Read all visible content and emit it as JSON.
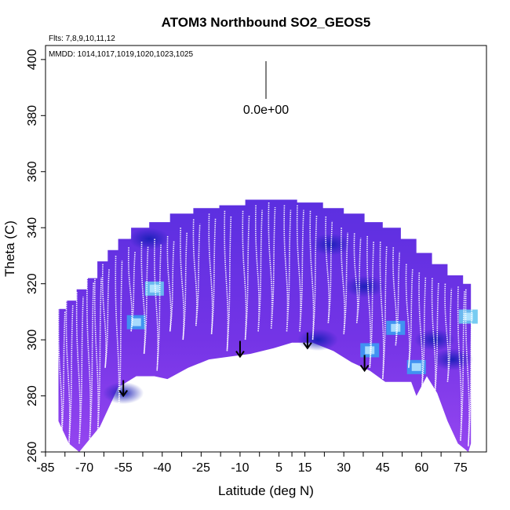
{
  "chart_data": {
    "type": "heatmap",
    "title": "ATOM3 Northbound SO2_GEOS5",
    "xlabel": "Latitude (deg N)",
    "ylabel": "Theta (C)",
    "xlim": [
      -85,
      85
    ],
    "ylim": [
      260,
      405
    ],
    "xticks": [
      -85,
      -70,
      -55,
      -40,
      -25,
      -10,
      5,
      15,
      30,
      45,
      60,
      75
    ],
    "xtick_labels": [
      "-85",
      "-70",
      "-55",
      "-40",
      "-25",
      "-10",
      "5",
      "15",
      "30",
      "45",
      "60",
      "75"
    ],
    "yticks": [
      260,
      280,
      300,
      320,
      340,
      360,
      380,
      400
    ],
    "ytick_labels": [
      "260",
      "280",
      "300",
      "320",
      "340",
      "360",
      "380",
      "400"
    ],
    "flights_label": "Flts: 7,8,9,10,11,12",
    "mmdd_label": "MMDD: 1014,1017,1019,1020,1023,1025",
    "scale_label": "0.0e+00",
    "curtain_top": [
      [
        -80,
        311
      ],
      [
        -77,
        314
      ],
      [
        -73,
        318
      ],
      [
        -69,
        322
      ],
      [
        -65,
        328
      ],
      [
        -61,
        332
      ],
      [
        -57,
        336
      ],
      [
        -52,
        340
      ],
      [
        -45,
        342
      ],
      [
        -37,
        345
      ],
      [
        -28,
        347
      ],
      [
        -18,
        348
      ],
      [
        -8,
        350
      ],
      [
        2,
        350
      ],
      [
        12,
        349
      ],
      [
        22,
        347
      ],
      [
        30,
        345
      ],
      [
        38,
        342
      ],
      [
        45,
        340
      ],
      [
        52,
        336
      ],
      [
        58,
        331
      ],
      [
        64,
        327
      ],
      [
        70,
        323
      ],
      [
        76,
        320
      ],
      [
        79,
        319
      ]
    ],
    "curtain_bottom": [
      [
        -80,
        271
      ],
      [
        -76,
        263
      ],
      [
        -72,
        260
      ],
      [
        -64,
        269
      ],
      [
        -57,
        283
      ],
      [
        -50,
        287
      ],
      [
        -43,
        287
      ],
      [
        -38,
        286
      ],
      [
        -30,
        290
      ],
      [
        -22,
        293
      ],
      [
        -14,
        294
      ],
      [
        -6,
        295
      ],
      [
        3,
        297
      ],
      [
        10,
        299
      ],
      [
        18,
        299
      ],
      [
        26,
        296
      ],
      [
        33,
        292
      ],
      [
        40,
        289
      ],
      [
        46,
        285
      ],
      [
        52,
        285
      ],
      [
        56,
        285
      ],
      [
        58,
        280
      ],
      [
        62,
        287
      ],
      [
        66,
        281
      ],
      [
        70,
        271
      ],
      [
        74,
        263
      ],
      [
        78,
        260
      ],
      [
        79,
        263
      ]
    ],
    "hot_spots": [
      {
        "lat": -50,
        "theta": 306,
        "level": "medium"
      },
      {
        "lat": -43,
        "theta": 318,
        "level": "low"
      },
      {
        "lat": 50,
        "theta": 304,
        "level": "medium"
      },
      {
        "lat": 40,
        "theta": 296,
        "level": "medium"
      },
      {
        "lat": 58,
        "theta": 290,
        "level": "medium"
      },
      {
        "lat": 78,
        "theta": 308,
        "level": "low"
      }
    ],
    "dark_zones": [
      {
        "lat": -45,
        "theta": 336
      },
      {
        "lat": -55,
        "theta": 281
      },
      {
        "lat": 38,
        "theta": 319
      },
      {
        "lat": 65,
        "theta": 300
      },
      {
        "lat": 72,
        "theta": 293
      },
      {
        "lat": 20,
        "theta": 300
      },
      {
        "lat": 25,
        "theta": 334
      }
    ],
    "arrows": [
      {
        "lat": -55,
        "theta": 280
      },
      {
        "lat": -10,
        "theta": 294
      },
      {
        "lat": 16,
        "theta": 297
      },
      {
        "lat": 38,
        "theta": 289
      }
    ],
    "profiles": [
      {
        "lat": -79,
        "top": 312,
        "bottom": 262
      },
      {
        "lat": -76,
        "top": 314,
        "bottom": 262
      },
      {
        "lat": -72,
        "top": 317,
        "bottom": 263
      },
      {
        "lat": -68,
        "top": 322,
        "bottom": 264
      },
      {
        "lat": -65,
        "top": 324,
        "bottom": 264
      },
      {
        "lat": -62,
        "top": 327,
        "bottom": 290
      },
      {
        "lat": -57,
        "top": 330,
        "bottom": 270
      },
      {
        "lat": -52,
        "top": 333,
        "bottom": 303
      },
      {
        "lat": -47,
        "top": 335,
        "bottom": 295
      },
      {
        "lat": -42,
        "top": 336,
        "bottom": 289
      },
      {
        "lat": -37,
        "top": 337,
        "bottom": 303
      },
      {
        "lat": -32,
        "top": 340,
        "bottom": 300
      },
      {
        "lat": -27,
        "top": 343,
        "bottom": 305
      },
      {
        "lat": -21,
        "top": 345,
        "bottom": 302
      },
      {
        "lat": -15,
        "top": 346,
        "bottom": 296
      },
      {
        "lat": -8,
        "top": 346,
        "bottom": 300
      },
      {
        "lat": -3,
        "top": 348,
        "bottom": 303
      },
      {
        "lat": 2,
        "top": 349,
        "bottom": 304
      },
      {
        "lat": 8,
        "top": 348,
        "bottom": 303
      },
      {
        "lat": 13,
        "top": 348,
        "bottom": 303
      },
      {
        "lat": 18,
        "top": 346,
        "bottom": 300
      },
      {
        "lat": 24,
        "top": 344,
        "bottom": 306
      },
      {
        "lat": 30,
        "top": 340,
        "bottom": 302
      },
      {
        "lat": 35,
        "top": 338,
        "bottom": 306
      },
      {
        "lat": 40,
        "top": 337,
        "bottom": 290
      },
      {
        "lat": 45,
        "top": 335,
        "bottom": 286
      },
      {
        "lat": 50,
        "top": 333,
        "bottom": 298
      },
      {
        "lat": 55,
        "top": 327,
        "bottom": 290
      },
      {
        "lat": 60,
        "top": 324,
        "bottom": 281
      },
      {
        "lat": 65,
        "top": 322,
        "bottom": 279
      },
      {
        "lat": 70,
        "top": 320,
        "bottom": 285
      },
      {
        "lat": 75,
        "top": 319,
        "bottom": 264
      },
      {
        "lat": 78,
        "top": 318,
        "bottom": 262
      }
    ],
    "colors": {
      "background": "#ffffff",
      "curtain_fill": "#7434e6",
      "curtain_light": "#8f46f2",
      "curtain_dark": "#4b2bd9",
      "dark_zone": "#1f22c6",
      "hot_medium": "#3b9cf2",
      "hot_low": "#68c6f0",
      "profile_line": "#ffffff",
      "arrow": "#000000",
      "frame": "#000000"
    }
  }
}
